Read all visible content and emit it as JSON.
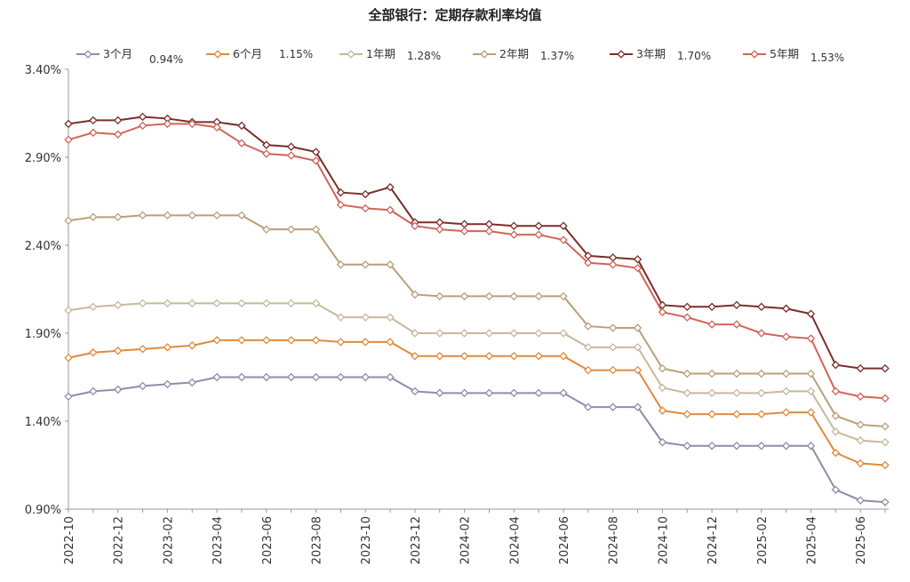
{
  "chart_data": {
    "type": "line",
    "title": "全部银行：定期存款利率均值",
    "ylim": [
      0.9,
      3.4
    ],
    "yticks": [
      "0.90%",
      "1.40%",
      "1.90%",
      "2.40%",
      "2.90%",
      "3.40%"
    ],
    "ytick_values": [
      0.9,
      1.4,
      1.9,
      2.4,
      2.9,
      3.4
    ],
    "grid": false,
    "legend_position": "top",
    "x": [
      "2022-10",
      "2022-11",
      "2022-12",
      "2023-01",
      "2023-02",
      "2023-03",
      "2023-04",
      "2023-05",
      "2023-06",
      "2023-07",
      "2023-08",
      "2023-09",
      "2023-10",
      "2023-11",
      "2023-12",
      "2024-01",
      "2024-02",
      "2024-03",
      "2024-04",
      "2024-05",
      "2024-06",
      "2024-07",
      "2024-08",
      "2024-09",
      "2024-10",
      "2024-11",
      "2024-12",
      "2025-01",
      "2025-02",
      "2025-03",
      "2025-04",
      "2025-05",
      "2025-06",
      "2025-07"
    ],
    "xtick_labels": [
      "2022-10",
      "2022-12",
      "2023-02",
      "2023-04",
      "2023-06",
      "2023-08",
      "2023-10",
      "2023-12",
      "2024-02",
      "2024-04",
      "2024-06",
      "2024-08",
      "2024-10",
      "2024-12",
      "2025-02",
      "2025-04",
      "2025-06"
    ],
    "series": [
      {
        "name": "3个月",
        "latest_label": "0.94%",
        "color": "#8c8ea8",
        "values": [
          1.54,
          1.57,
          1.58,
          1.6,
          1.61,
          1.62,
          1.65,
          1.65,
          1.65,
          1.65,
          1.65,
          1.65,
          1.65,
          1.65,
          1.57,
          1.56,
          1.56,
          1.56,
          1.56,
          1.56,
          1.56,
          1.48,
          1.48,
          1.48,
          1.28,
          1.26,
          1.26,
          1.26,
          1.26,
          1.26,
          1.26,
          1.01,
          0.95,
          0.94
        ]
      },
      {
        "name": "6个月",
        "latest_label": "1.15%",
        "color": "#e08a3c",
        "values": [
          1.76,
          1.79,
          1.8,
          1.81,
          1.82,
          1.83,
          1.86,
          1.86,
          1.86,
          1.86,
          1.86,
          1.85,
          1.85,
          1.85,
          1.77,
          1.77,
          1.77,
          1.77,
          1.77,
          1.77,
          1.77,
          1.69,
          1.69,
          1.69,
          1.46,
          1.44,
          1.44,
          1.44,
          1.44,
          1.45,
          1.45,
          1.22,
          1.16,
          1.15
        ]
      },
      {
        "name": "1年期",
        "latest_label": "1.28%",
        "color": "#c8b89c",
        "values": [
          2.03,
          2.05,
          2.06,
          2.07,
          2.07,
          2.07,
          2.07,
          2.07,
          2.07,
          2.07,
          2.07,
          1.99,
          1.99,
          1.99,
          1.9,
          1.9,
          1.9,
          1.9,
          1.9,
          1.9,
          1.9,
          1.82,
          1.82,
          1.82,
          1.59,
          1.56,
          1.56,
          1.56,
          1.56,
          1.57,
          1.57,
          1.34,
          1.29,
          1.28
        ]
      },
      {
        "name": "2年期",
        "latest_label": "1.37%",
        "color": "#b8a07a",
        "values": [
          2.54,
          2.56,
          2.56,
          2.57,
          2.57,
          2.57,
          2.57,
          2.57,
          2.49,
          2.49,
          2.49,
          2.29,
          2.29,
          2.29,
          2.12,
          2.11,
          2.11,
          2.11,
          2.11,
          2.11,
          2.11,
          1.94,
          1.93,
          1.93,
          1.7,
          1.67,
          1.67,
          1.67,
          1.67,
          1.67,
          1.67,
          1.43,
          1.38,
          1.37
        ]
      },
      {
        "name": "3年期",
        "latest_label": "1.70%",
        "color": "#7a2e2a",
        "values": [
          3.09,
          3.11,
          3.11,
          3.13,
          3.12,
          3.1,
          3.1,
          3.08,
          2.97,
          2.96,
          2.93,
          2.7,
          2.69,
          2.73,
          2.53,
          2.53,
          2.52,
          2.52,
          2.51,
          2.51,
          2.51,
          2.34,
          2.33,
          2.32,
          2.06,
          2.05,
          2.05,
          2.06,
          2.05,
          2.04,
          2.01,
          1.72,
          1.7,
          1.7
        ]
      },
      {
        "name": "5年期",
        "latest_label": "1.53%",
        "color": "#d0645a",
        "values": [
          3.0,
          3.04,
          3.03,
          3.08,
          3.09,
          3.09,
          3.07,
          2.98,
          2.92,
          2.91,
          2.88,
          2.63,
          2.61,
          2.6,
          2.51,
          2.49,
          2.48,
          2.48,
          2.46,
          2.46,
          2.43,
          2.3,
          2.29,
          2.27,
          2.02,
          1.99,
          1.95,
          1.95,
          1.9,
          1.88,
          1.87,
          1.57,
          1.54,
          1.53
        ]
      }
    ]
  }
}
